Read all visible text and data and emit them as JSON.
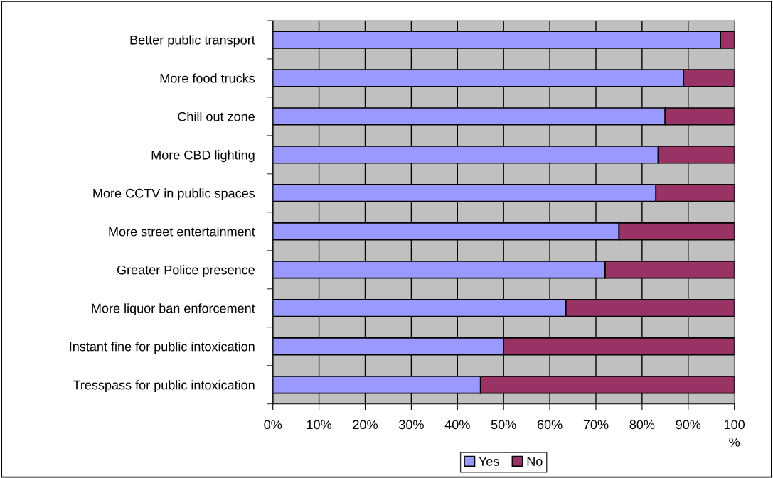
{
  "chart_data": {
    "type": "bar",
    "orientation": "horizontal",
    "stacked": true,
    "categories": [
      "Better public transport",
      "More food trucks",
      "Chill out zone",
      "More CBD lighting",
      "More CCTV in public spaces",
      "More street entertainment",
      "Greater Police presence",
      "More liquor ban enforcement",
      "Instant fine for public intoxication",
      "Tresspass for public intoxication"
    ],
    "series": [
      {
        "name": "Yes",
        "color": "#9999ff",
        "values": [
          97,
          89,
          85,
          83.5,
          83,
          75,
          72,
          63.5,
          50,
          45
        ]
      },
      {
        "name": "No",
        "color": "#993366",
        "values": [
          3,
          11,
          15,
          16.5,
          17,
          25,
          28,
          36.5,
          50,
          55
        ]
      }
    ],
    "xlim": [
      0,
      100
    ],
    "xticks": [
      {
        "value": 0,
        "label": "0%"
      },
      {
        "value": 10,
        "label": "10%"
      },
      {
        "value": 20,
        "label": "20%"
      },
      {
        "value": 30,
        "label": "30%"
      },
      {
        "value": 40,
        "label": "40%"
      },
      {
        "value": 50,
        "label": "50%"
      },
      {
        "value": 60,
        "label": "60%"
      },
      {
        "value": 70,
        "label": "70%"
      },
      {
        "value": 80,
        "label": "80%"
      },
      {
        "value": 90,
        "label": "90%"
      },
      {
        "value": 100,
        "label": "100\n%"
      }
    ],
    "grid": "x",
    "legend": "bottom"
  }
}
